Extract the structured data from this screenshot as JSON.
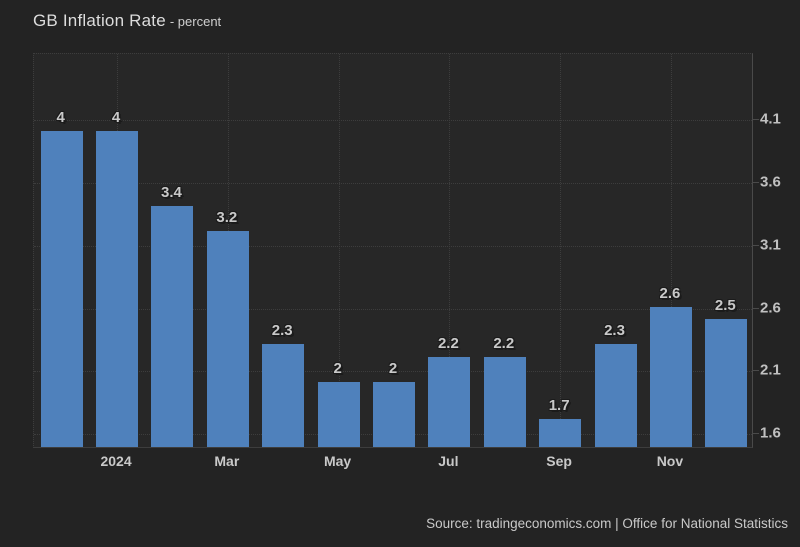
{
  "header": {
    "title": "GB Inflation Rate",
    "subtitle": "- percent"
  },
  "footer": {
    "source": "Source: tradingeconomics.com | Office for National Statistics"
  },
  "chart_data": {
    "type": "bar",
    "title": "GB Inflation Rate",
    "unit": "percent",
    "values": [
      4,
      4,
      3.4,
      3.2,
      2.3,
      2,
      2,
      2.2,
      2.2,
      1.7,
      2.3,
      2.6,
      2.5
    ],
    "bar_value_labels": [
      "4",
      "4",
      "3.4",
      "3.2",
      "2.3",
      "2",
      "2",
      "2.2",
      "2.2",
      "1.7",
      "2.3",
      "2.6",
      "2.5"
    ],
    "x_tick_labels": [
      {
        "label": "2024",
        "bar_index": 1
      },
      {
        "label": "Mar",
        "bar_index": 3
      },
      {
        "label": "May",
        "bar_index": 5
      },
      {
        "label": "Jul",
        "bar_index": 7
      },
      {
        "label": "Sep",
        "bar_index": 9
      },
      {
        "label": "Nov",
        "bar_index": 11
      }
    ],
    "y_tick_labels": [
      "4.1",
      "3.6",
      "3.1",
      "2.6",
      "2.1",
      "1.6"
    ],
    "ylim": [
      1.48,
      4.63
    ],
    "grid": "dotted",
    "legend": "none",
    "colors": {
      "bar": "#4f81bc",
      "page_bg": "#232323",
      "plot_bg": "#272727",
      "grid": "#3d3d3d",
      "axis": "#4a4a4a",
      "label": "#c9c9c9",
      "title": "#dddddd"
    }
  }
}
